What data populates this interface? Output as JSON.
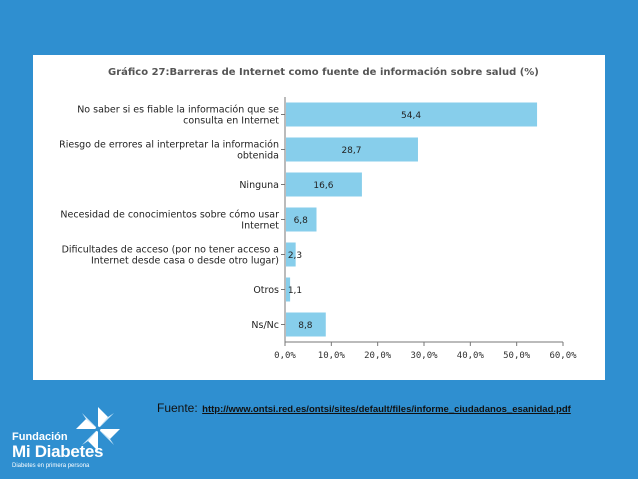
{
  "chart_data": {
    "type": "bar",
    "orientation": "horizontal",
    "title": "Gráfico 27:Barreras de Internet como fuente de información sobre salud (%)",
    "categories": [
      [
        "No saber si es fiable la información que se",
        "consulta en Internet"
      ],
      [
        "Riesgo de errores al interpretar la información",
        "obtenida"
      ],
      [
        "Ninguna"
      ],
      [
        "Necesidad de conocimientos sobre cómo usar",
        "Internet"
      ],
      [
        "Dificultades de acceso (por no tener acceso a",
        "Internet desde casa o desde otro lugar)"
      ],
      [
        "Otros"
      ],
      [
        "Ns/Nc"
      ]
    ],
    "values": [
      54.4,
      28.7,
      16.6,
      6.8,
      2.3,
      1.1,
      8.8
    ],
    "value_labels": [
      "54,4",
      "28,7",
      "16,6",
      "6,8",
      "2,3",
      "1,1",
      "8,8"
    ],
    "xlim": [
      0,
      60
    ],
    "xticks": [
      "0,0%",
      "10,0%",
      "20,0%",
      "30,0%",
      "40,0%",
      "50,0%",
      "60,0%"
    ],
    "grid": false,
    "bar_color": "#87ceeb"
  },
  "source": {
    "prefix": "Fuente:",
    "url": "http://www.ontsi.red.es/ontsi/sites/default/files/informe_ciudadanos_esanidad.pdf"
  },
  "brand": {
    "word1": "Fundación",
    "word2": "Mi Diabetes",
    "tagline": "Diabetes en primera persona",
    "icon": "pinwheel-icon"
  }
}
